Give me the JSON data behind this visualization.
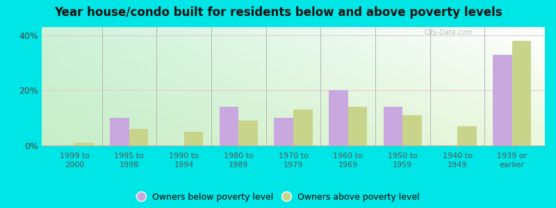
{
  "categories": [
    "1999 to\n2000",
    "1995 to\n1998",
    "1990 to\n1994",
    "1980 to\n1989",
    "1970 to\n1979",
    "1960 to\n1969",
    "1950 to\n1959",
    "1940 to\n1949",
    "1939 or\nearlier"
  ],
  "below_poverty": [
    0.0,
    10.0,
    0.0,
    14.0,
    10.0,
    20.0,
    14.0,
    0.0,
    33.0
  ],
  "above_poverty": [
    1.0,
    6.0,
    5.0,
    9.0,
    13.0,
    14.0,
    11.0,
    7.0,
    38.0
  ],
  "below_color": "#c9a8e0",
  "above_color": "#c8d48a",
  "title": "Year house/condo built for residents below and above poverty levels",
  "title_fontsize": 12,
  "ylabel_ticks": [
    "0%",
    "20%",
    "40%"
  ],
  "yticks": [
    0,
    20,
    40
  ],
  "ylim": [
    0,
    43
  ],
  "outer_background": "#00e5e5",
  "legend_below": "Owners below poverty level",
  "legend_above": "Owners above poverty level",
  "bar_width": 0.35,
  "watermark": "City-Data.com",
  "grad_top_left": "#cdecd8",
  "grad_top_right": "#ffffff",
  "grad_bottom_left": "#d4edd4",
  "grad_bottom_right": "#eef5de"
}
